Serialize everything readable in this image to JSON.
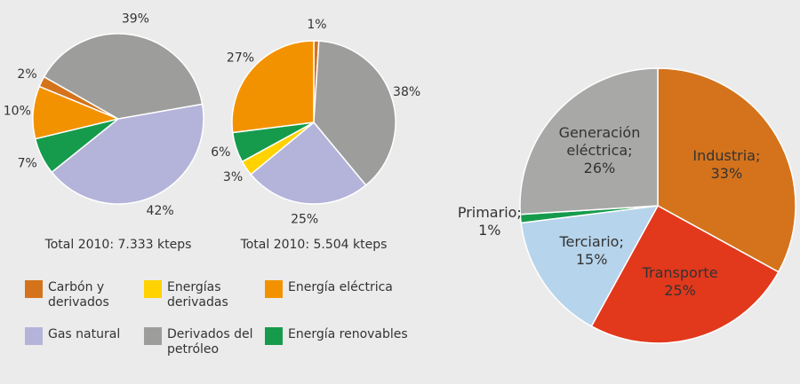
{
  "chart_data": [
    {
      "type": "pie",
      "caption": "Total 2010: 7.333 kteps",
      "start_angle": 80,
      "categories": [
        "Gas natural",
        "Energía renovables",
        "Energía eléctrica",
        "Carbón y derivados",
        "Derivados del petróleo"
      ],
      "values": [
        42,
        7,
        10,
        2,
        39
      ],
      "value_labels": [
        "42%",
        "7%",
        "10%",
        "2%",
        "39%"
      ],
      "colors": [
        "#b4b3da",
        "#169b4c",
        "#f39200",
        "#d4731c",
        "#9d9d9c"
      ]
    },
    {
      "type": "pie",
      "caption": "Total 2010: 5.504 kteps",
      "start_angle": 0,
      "categories": [
        "Carbón y derivados",
        "Derivados del petróleo",
        "Gas natural",
        "Energías derivadas",
        "Energía renovables",
        "Energía eléctrica"
      ],
      "values": [
        1,
        38,
        25,
        3,
        6,
        27
      ],
      "value_labels": [
        "1%",
        "38%",
        "25%",
        "3%",
        "6%",
        "27%"
      ],
      "colors": [
        "#d4731c",
        "#9d9d9c",
        "#b4b3da",
        "#ffd200",
        "#169b4c",
        "#f39200"
      ]
    },
    {
      "type": "pie",
      "start_angle": 0,
      "categories": [
        "Industria;",
        "Transporte",
        "Terciario;",
        "Primario;",
        "Generación eléctrica;"
      ],
      "values": [
        33,
        25,
        15,
        1,
        26
      ],
      "value_labels": [
        "33%",
        "25%",
        "15%",
        "1%",
        "26%"
      ],
      "colors": [
        "#d4731c",
        "#e2381c",
        "#b6d4eb",
        "#169b4c",
        "#a8a8a7"
      ]
    }
  ],
  "legend": {
    "items": [
      {
        "name": "Carbón y derivados",
        "color": "#d4731c"
      },
      {
        "name": "Energías derivadas",
        "color": "#ffd200"
      },
      {
        "name": "Energía eléctrica",
        "color": "#f39200"
      },
      {
        "name": "Gas natural",
        "color": "#b4b3da"
      },
      {
        "name": "Derivados del petróleo",
        "color": "#9d9d9c"
      },
      {
        "name": "Energía renovables",
        "color": "#169b4c"
      }
    ]
  }
}
